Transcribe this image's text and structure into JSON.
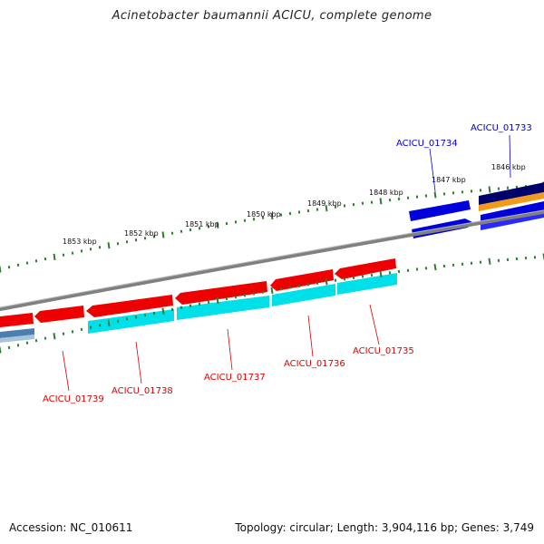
{
  "title": "Acinetobacter baumannii ACICU, complete genome",
  "footer": {
    "accession": "Accession: NC_010611",
    "summary": "Topology: circular; Length: 3,904,116 bp; Genes: 3,749"
  },
  "colors": {
    "backbone": "#8a8a8a",
    "forward_cds": "#0000dd",
    "reverse_cds": "#ee0000",
    "reverse_gene": "#00e0e8",
    "tick": "#2e7d2e",
    "dark_navy": "#00006a",
    "orange": "#f39a1c",
    "steel_blue": "#4b7fb0"
  },
  "ruler": {
    "ticks": [
      "1846 kbp",
      "1847 kbp",
      "1848 kbp",
      "1849 kbp",
      "1850 kbp",
      "1851 kbp",
      "1852 kbp",
      "1853 kbp"
    ]
  },
  "genes": {
    "forward": [
      "ACICU_01733",
      "ACICU_01734"
    ],
    "reverse": [
      "ACICU_01735",
      "ACICU_01736",
      "ACICU_01737",
      "ACICU_01738",
      "ACICU_01739"
    ]
  }
}
